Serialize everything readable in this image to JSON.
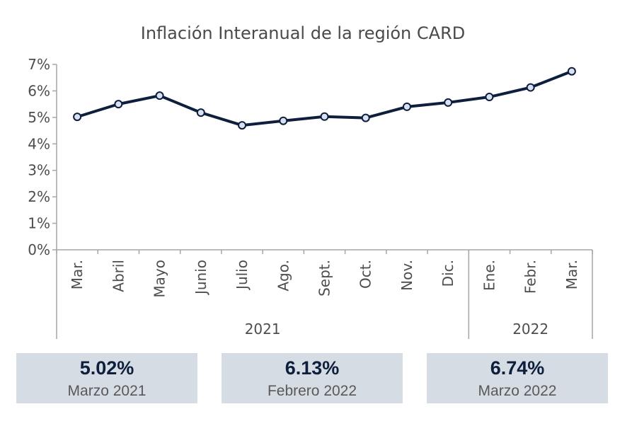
{
  "chart_data": {
    "type": "line",
    "title": "Inflación Interanual de la región CARD",
    "categories": [
      "Mar.",
      "Abril",
      "Mayo",
      "Junio",
      "Julio",
      "Ago.",
      "Sept.",
      "Oct.",
      "Nov.",
      "Dic.",
      "Ene.",
      "Febr.",
      "Mar."
    ],
    "groups": [
      {
        "label": "2021",
        "count": 10
      },
      {
        "label": "2022",
        "count": 3
      }
    ],
    "series": [
      {
        "values": [
          5.02,
          5.5,
          5.82,
          5.18,
          4.7,
          4.87,
          5.03,
          4.98,
          5.4,
          5.56,
          5.77,
          6.13,
          6.74
        ]
      }
    ],
    "ylim": [
      0,
      7
    ],
    "yticks": [
      0,
      1,
      2,
      3,
      4,
      5,
      6,
      7
    ],
    "ytick_labels": [
      "0%",
      "1%",
      "2%",
      "3%",
      "4%",
      "5%",
      "6%",
      "7%"
    ],
    "grid": false,
    "colors": {
      "line": "#0e1f3d",
      "marker_fill": "#d9e1f2",
      "axis": "#a6a6a6"
    }
  },
  "kpis": [
    {
      "value": "5.02%",
      "label": "Marzo 2021"
    },
    {
      "value": "6.13%",
      "label": "Febrero 2022"
    },
    {
      "value": "6.74%",
      "label": "Marzo 2022"
    }
  ]
}
